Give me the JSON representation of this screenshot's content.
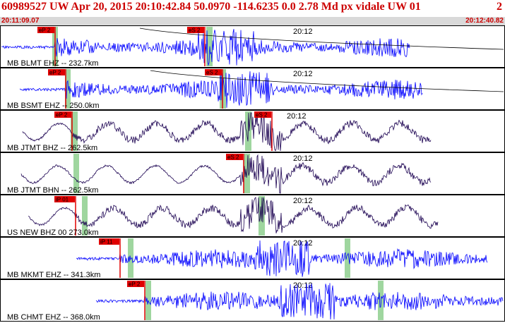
{
  "header": {
    "title": "60989527 UW Apr 20, 2015 20:10:42.84    50.0970 -114.6235   0.0 2.78 Md px vidale UW 01",
    "title_extra": "2",
    "start_time": "20:11:09.07",
    "end_time": "20:12:40.82"
  },
  "time_marker_label": "20:12",
  "colors": {
    "title": "#cc0000",
    "time_bar_bg": "#d9d9d9",
    "trace_blue": "#0000ff",
    "trace_navy": "#1a0050",
    "pick": "#e00000",
    "pick_label_text": "#000000",
    "window_band": "#9fd69f",
    "panel_border": "#000000"
  },
  "panels": [
    {
      "station": "MB BLMT EHZ -- 232.7km",
      "trace_style": "blue_hf",
      "picks": [
        "eP 2",
        "eS 2"
      ],
      "bands": [
        2
      ],
      "seed": 11
    },
    {
      "station": "MB BSMT EHZ -- 250.0km",
      "trace_style": "blue_hf",
      "picks": [
        "eP 2",
        "eS 2"
      ],
      "bands": [
        2
      ],
      "seed": 23
    },
    {
      "station": "MB JTMT BHZ -- 262.5km",
      "trace_style": "navy_lf",
      "picks": [
        "eP 2",
        "eS 2"
      ],
      "bands": [
        2
      ],
      "seed": 37
    },
    {
      "station": "MB JTMT BHN -- 262.5km",
      "trace_style": "navy_lf",
      "picks": [
        "eS 2"
      ],
      "bands": [
        2
      ],
      "seed": 41
    },
    {
      "station": "US NEW BHZ 00 273.0km",
      "trace_style": "navy_lf",
      "picks": [
        "iP 01"
      ],
      "bands": [
        2
      ],
      "seed": 53
    },
    {
      "station": "MB MKMT EHZ -- 341.3km",
      "trace_style": "blue_hf",
      "picks": [
        "iP 11"
      ],
      "bands": [
        2
      ],
      "seed": 67
    },
    {
      "station": "MB CHMT EHZ -- 368.0km",
      "trace_style": "blue_hf",
      "picks": [
        "eP 2"
      ],
      "bands": [
        2
      ],
      "seed": 79
    }
  ]
}
